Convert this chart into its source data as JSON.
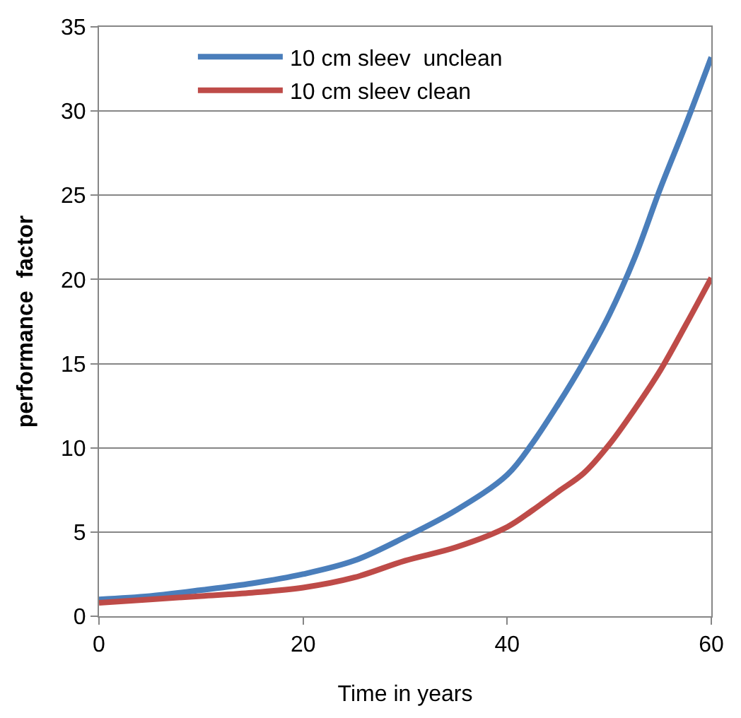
{
  "chart_data": {
    "type": "line",
    "xlabel": "Time in years",
    "ylabel": "performance  factor",
    "x": [
      0,
      5,
      10,
      15,
      20,
      25,
      30,
      35,
      40,
      42.5,
      45,
      47.5,
      50,
      52.5,
      55,
      57.5,
      60
    ],
    "series": [
      {
        "name": "10 cm sleev  unclean",
        "color": "#4a7ebb",
        "values": [
          1.0,
          1.2,
          1.55,
          1.95,
          2.5,
          3.3,
          4.7,
          6.3,
          8.4,
          10.3,
          12.6,
          15.1,
          17.9,
          21.3,
          25.4,
          29.2,
          33.2
        ]
      },
      {
        "name": "10 cm sleev clean",
        "color": "#be4b48",
        "values": [
          0.8,
          1.0,
          1.2,
          1.4,
          1.7,
          2.3,
          3.3,
          4.1,
          5.3,
          6.3,
          7.4,
          8.5,
          10.2,
          12.3,
          14.6,
          17.3,
          20.1
        ]
      }
    ],
    "xlim": [
      0,
      60
    ],
    "xticks": [
      0,
      20,
      40,
      60
    ],
    "ylim": [
      0,
      35
    ],
    "yticks": [
      0,
      5,
      10,
      15,
      20,
      25,
      30,
      35
    ],
    "grid": "y",
    "legend": "top",
    "marker": "none",
    "line_style": "solid"
  }
}
